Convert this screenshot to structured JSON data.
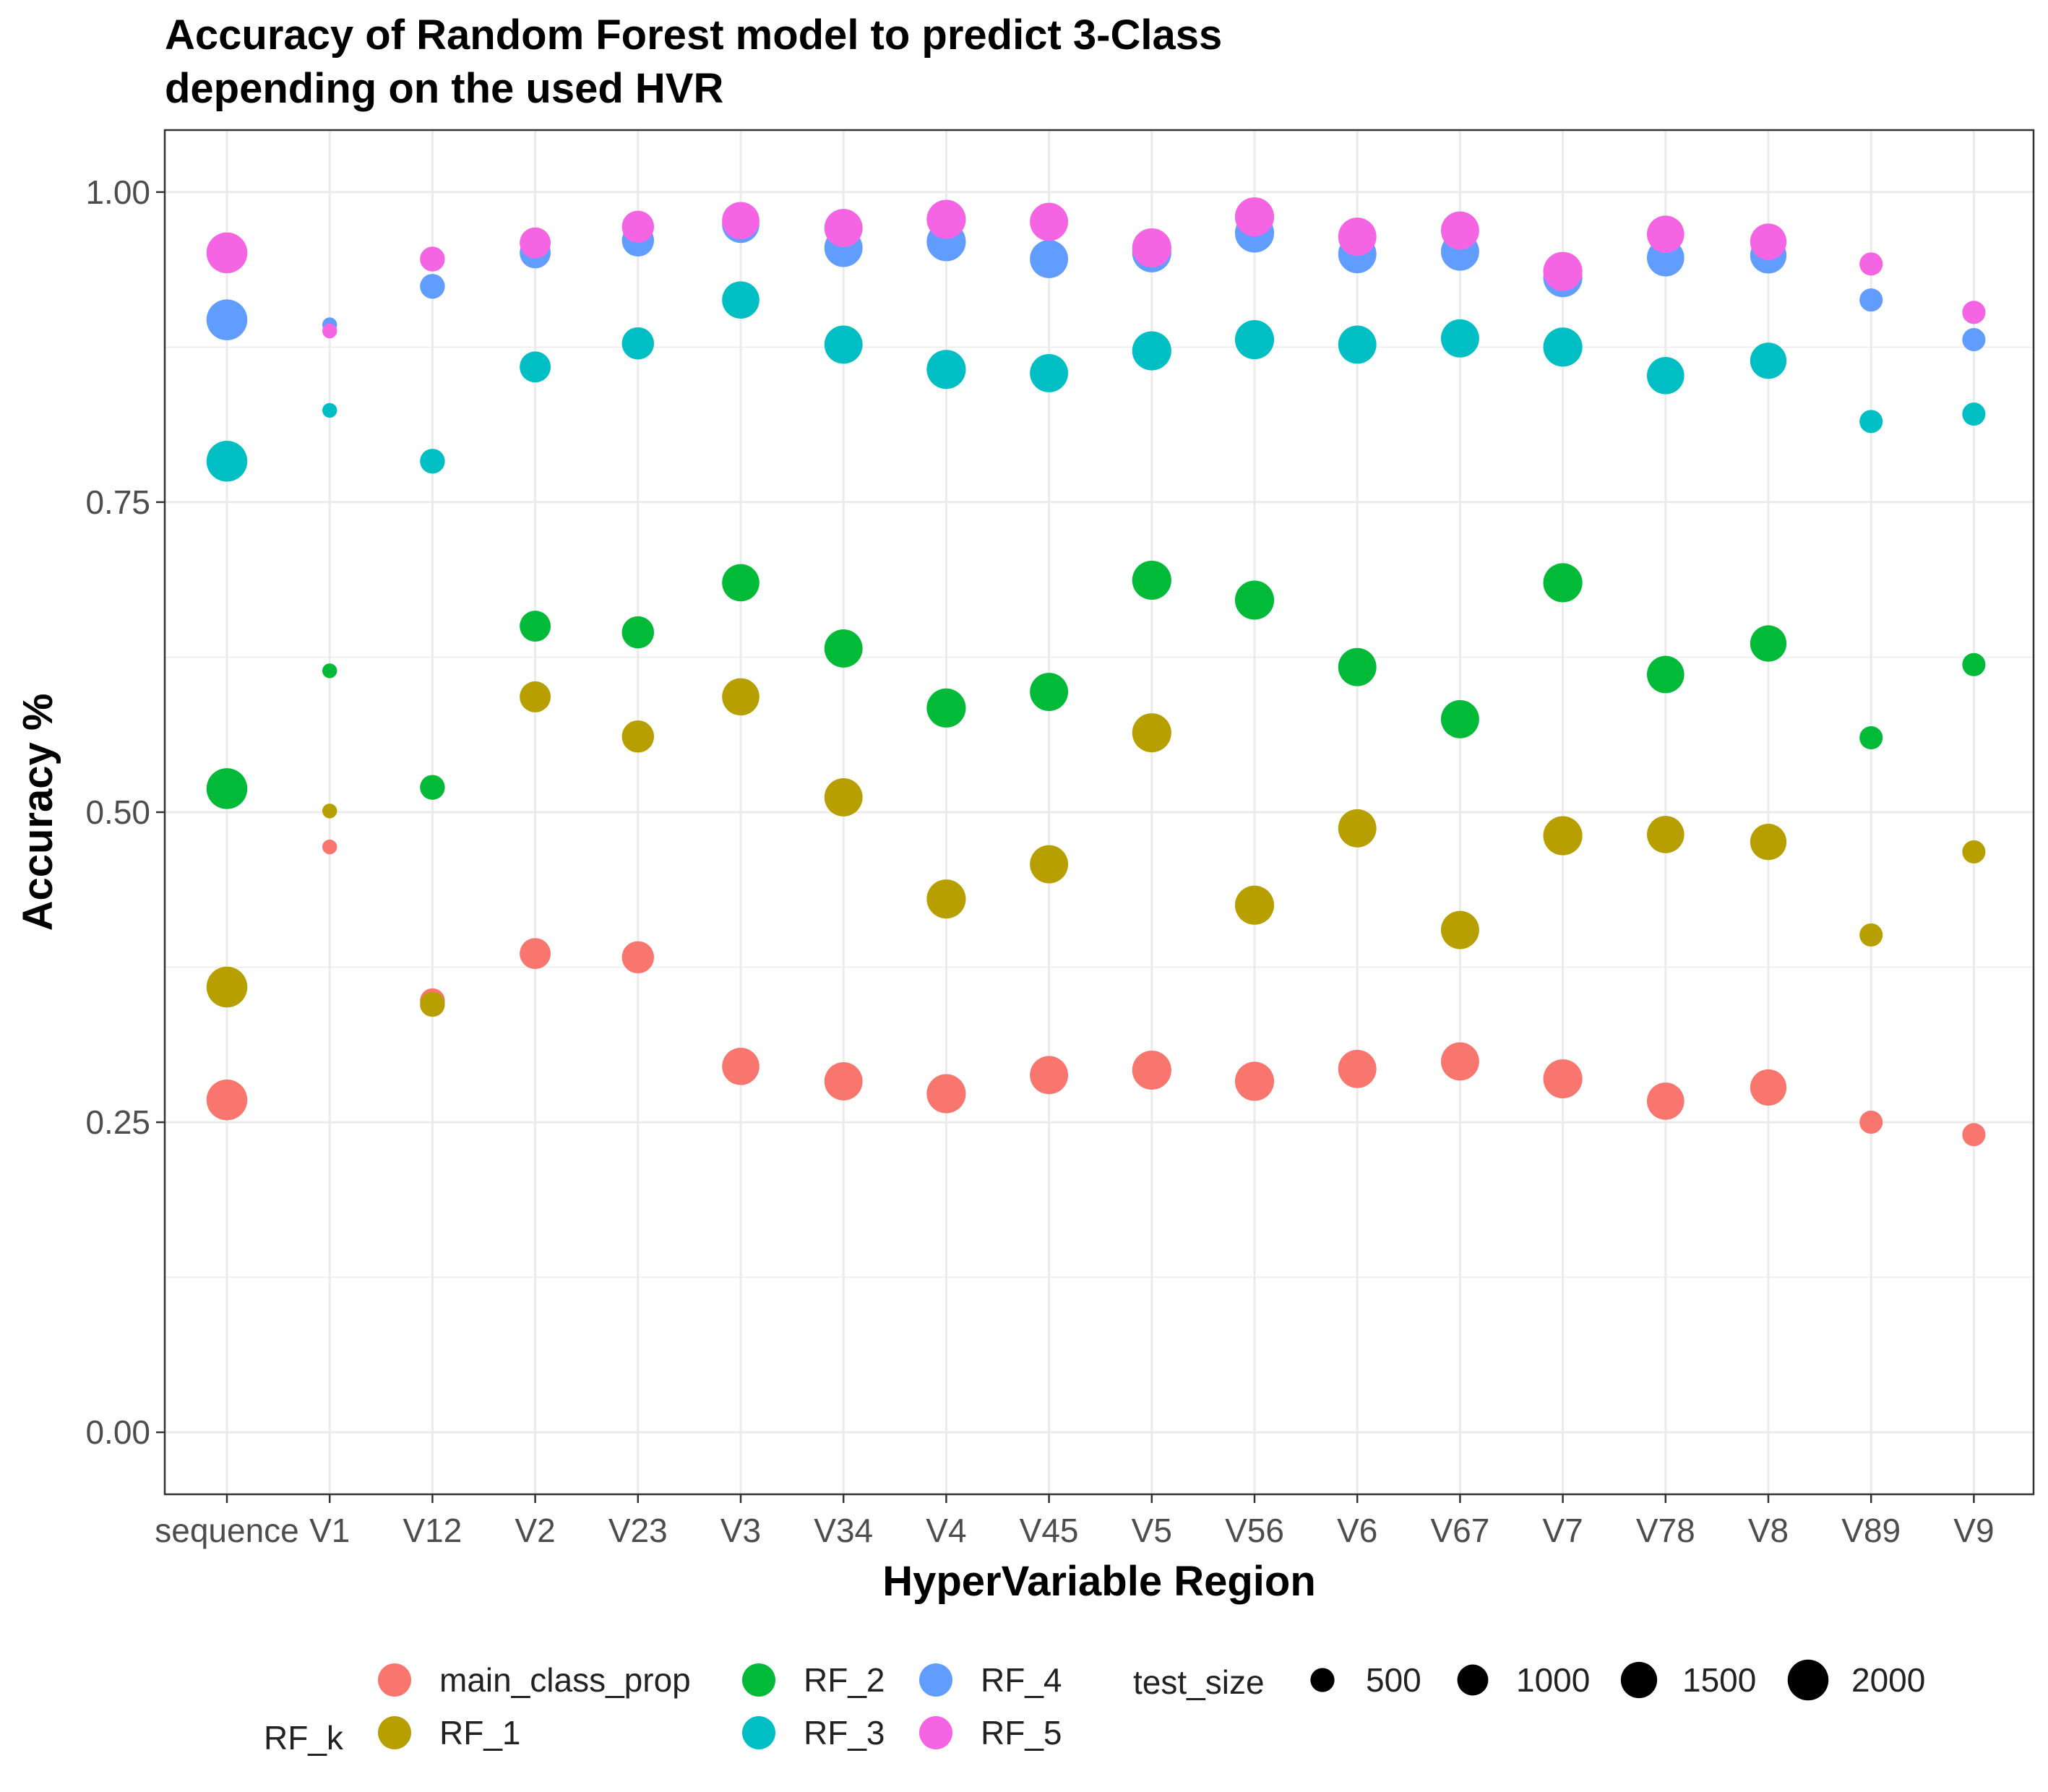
{
  "chart_data": {
    "type": "scatter",
    "title": "Accuracy of Random Forest model to predict 3-Class",
    "subtitle": "depending on the used HVR",
    "xlabel": "HyperVariable Region",
    "ylabel": "Accuracy %",
    "categories": [
      "sequence",
      "V1",
      "V12",
      "V2",
      "V23",
      "V3",
      "V34",
      "V4",
      "V45",
      "V5",
      "V56",
      "V6",
      "V67",
      "V7",
      "V78",
      "V8",
      "V89",
      "V9"
    ],
    "ylim": [
      -0.05,
      1.05
    ],
    "yticks": [
      0.0,
      0.25,
      0.5,
      0.75,
      1.0
    ],
    "yticklabels": [
      "0.00",
      "0.25",
      "0.50",
      "0.75",
      "1.00"
    ],
    "grid": true,
    "legend_position": "bottom",
    "color_legend_title": "RF_k",
    "size_legend_title": "test_size",
    "size_legend": [
      {
        "label": "500",
        "value": 500
      },
      {
        "label": "1000",
        "value": 1000
      },
      {
        "label": "1500",
        "value": 1500
      },
      {
        "label": "2000",
        "value": 2000
      }
    ],
    "test_size": [
      2000,
      100,
      550,
      1000,
      1100,
      1600,
      1700,
      1800,
      1700,
      1800,
      1800,
      1700,
      1700,
      1800,
      1600,
      1500,
      450,
      450
    ],
    "series": [
      {
        "name": "main_class_prop",
        "color": "#F8766D",
        "values": [
          0.268,
          0.472,
          0.348,
          0.386,
          0.383,
          0.295,
          0.283,
          0.273,
          0.288,
          0.292,
          0.283,
          0.293,
          0.299,
          0.285,
          0.267,
          0.278,
          0.25,
          0.24
        ]
      },
      {
        "name": "RF_1",
        "color": "#B79F00",
        "values": [
          0.359,
          0.501,
          0.345,
          0.593,
          0.561,
          0.593,
          0.512,
          0.43,
          0.458,
          0.564,
          0.425,
          0.487,
          0.405,
          0.481,
          0.482,
          0.476,
          0.401,
          0.468
        ]
      },
      {
        "name": "RF_2",
        "color": "#00BA38",
        "values": [
          0.519,
          0.614,
          0.52,
          0.65,
          0.645,
          0.685,
          0.632,
          0.584,
          0.597,
          0.687,
          0.671,
          0.617,
          0.575,
          0.685,
          0.611,
          0.636,
          0.56,
          0.619
        ]
      },
      {
        "name": "RF_3",
        "color": "#00BFC4",
        "values": [
          0.783,
          0.824,
          0.783,
          0.859,
          0.878,
          0.913,
          0.877,
          0.857,
          0.854,
          0.872,
          0.881,
          0.877,
          0.882,
          0.875,
          0.852,
          0.864,
          0.815,
          0.821
        ]
      },
      {
        "name": "RF_4",
        "color": "#619CFF",
        "values": [
          0.897,
          0.893,
          0.924,
          0.951,
          0.961,
          0.974,
          0.955,
          0.96,
          0.946,
          0.951,
          0.967,
          0.95,
          0.952,
          0.931,
          0.947,
          0.949,
          0.913,
          0.881
        ]
      },
      {
        "name": "RF_5",
        "color": "#F564E3",
        "values": [
          0.951,
          0.888,
          0.946,
          0.959,
          0.972,
          0.977,
          0.971,
          0.978,
          0.976,
          0.955,
          0.98,
          0.964,
          0.969,
          0.936,
          0.966,
          0.96,
          0.942,
          0.903
        ]
      }
    ]
  }
}
